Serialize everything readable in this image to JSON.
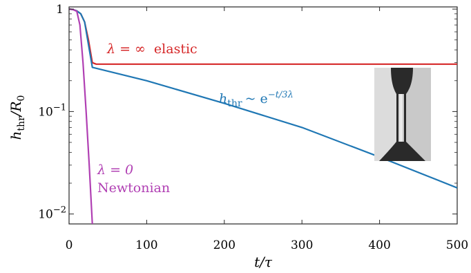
{
  "chart_data": {
    "type": "line",
    "xlabel": "t/τ",
    "ylabel": "h_thr/R_0",
    "xlim": [
      0,
      500
    ],
    "ylim": [
      0.008,
      1.05
    ],
    "yscale": "log",
    "grid": false,
    "x_ticks": [
      "0",
      "100",
      "200",
      "300",
      "400",
      "500"
    ],
    "y_ticks": [
      {
        "base": "1",
        "exp": ""
      },
      {
        "base": "10",
        "exp": "−1"
      },
      {
        "base": "10",
        "exp": "−2"
      }
    ],
    "series": [
      {
        "color": "#d62728",
        "points": [
          [
            0,
            1.0
          ],
          [
            5,
            0.99
          ],
          [
            10,
            0.96
          ],
          [
            15,
            0.9
          ],
          [
            20,
            0.75
          ],
          [
            25,
            0.5
          ],
          [
            30,
            0.3
          ],
          [
            35,
            0.29
          ],
          [
            500,
            0.29
          ]
        ]
      },
      {
        "color": "#1f77b4",
        "points": [
          [
            0,
            1.0
          ],
          [
            5,
            0.99
          ],
          [
            10,
            0.96
          ],
          [
            15,
            0.9
          ],
          [
            20,
            0.75
          ],
          [
            25,
            0.45
          ],
          [
            30,
            0.27
          ],
          [
            100,
            0.2
          ],
          [
            200,
            0.12
          ],
          [
            300,
            0.07
          ],
          [
            400,
            0.036
          ],
          [
            500,
            0.018
          ]
        ]
      },
      {
        "color": "#b03fb3",
        "points": [
          [
            0,
            1.0
          ],
          [
            5,
            0.99
          ],
          [
            10,
            0.95
          ],
          [
            14,
            0.7
          ],
          [
            18,
            0.3
          ],
          [
            22,
            0.1
          ],
          [
            26,
            0.03
          ],
          [
            30,
            0.008
          ]
        ]
      }
    ],
    "annotations": {
      "elastic": {
        "prefix": "λ = ∞",
        "suffix": "elastic",
        "color": "#d62728"
      },
      "law": {
        "h": "h",
        "sub": "thr",
        "rest": "~ e",
        "exp": "−t/3λ",
        "color": "#1f77b4"
      },
      "newtonian_line1": {
        "text": "λ = 0",
        "color": "#b03fb3"
      },
      "newtonian_line2": {
        "text": "Newtonian",
        "color": "#b03fb3"
      }
    }
  }
}
